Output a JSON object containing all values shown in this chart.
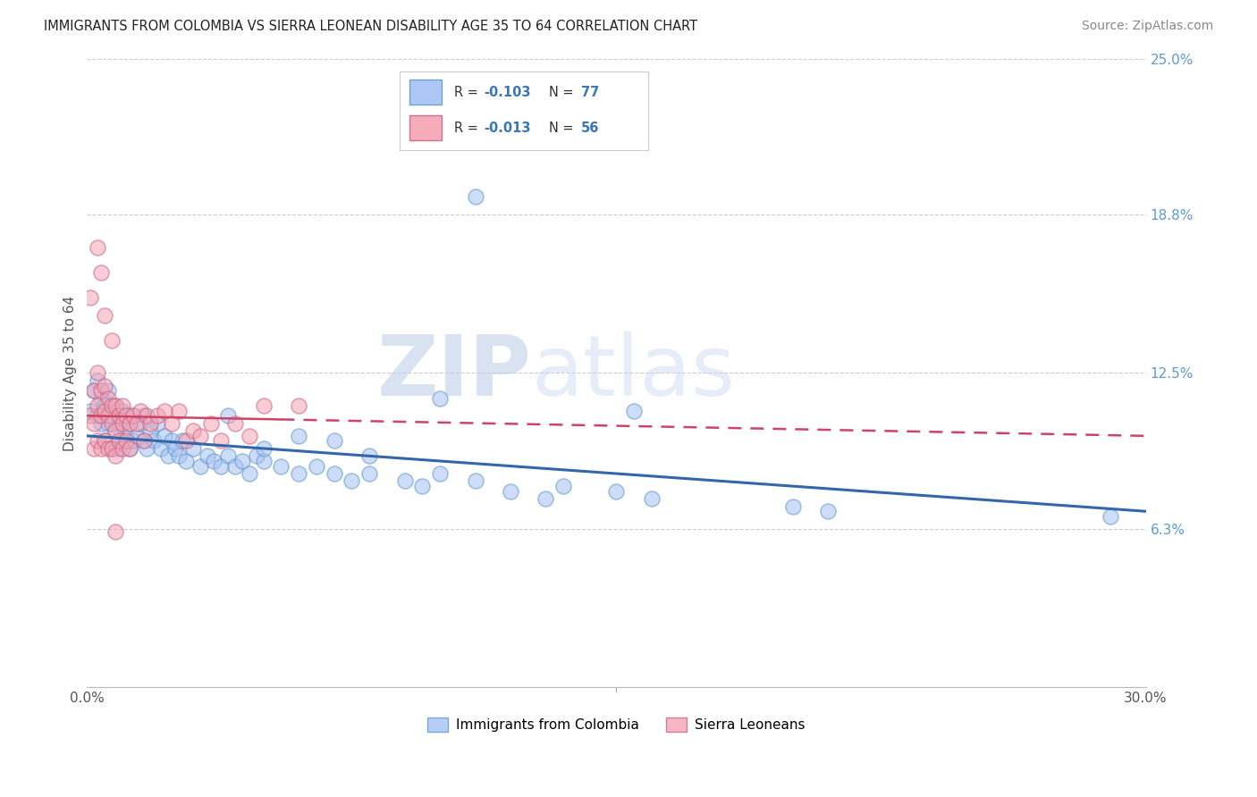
{
  "title": "IMMIGRANTS FROM COLOMBIA VS SIERRA LEONEAN DISABILITY AGE 35 TO 64 CORRELATION CHART",
  "source": "Source: ZipAtlas.com",
  "ylabel": "Disability Age 35 to 64",
  "xlim": [
    0.0,
    0.3
  ],
  "ylim": [
    0.0,
    0.25
  ],
  "ytick_right_values": [
    0.0,
    0.063,
    0.125,
    0.188,
    0.25
  ],
  "ytick_right_labels": [
    "",
    "6.3%",
    "12.5%",
    "18.8%",
    "25.0%"
  ],
  "grid_color": "#cccccc",
  "background_color": "#ffffff",
  "blue_fill": "#a4c2f4",
  "blue_edge": "#6699cc",
  "pink_fill": "#f4a4b4",
  "pink_edge": "#cc6688",
  "blue_line_color": "#3366aa",
  "pink_line_color": "#cc4466",
  "legend_r_blue": "-0.103",
  "legend_n_blue": "77",
  "legend_r_pink": "-0.013",
  "legend_n_pink": "56",
  "legend_label_blue": "Immigrants from Colombia",
  "legend_label_pink": "Sierra Leoneans",
  "watermark_zip": "ZIP",
  "watermark_atlas": "atlas",
  "colombia_x": [
    0.001,
    0.002,
    0.003,
    0.003,
    0.004,
    0.004,
    0.005,
    0.005,
    0.006,
    0.006,
    0.007,
    0.007,
    0.008,
    0.008,
    0.009,
    0.009,
    0.01,
    0.01,
    0.011,
    0.011,
    0.012,
    0.012,
    0.013,
    0.013,
    0.014,
    0.015,
    0.016,
    0.016,
    0.017,
    0.018,
    0.019,
    0.02,
    0.021,
    0.022,
    0.023,
    0.024,
    0.025,
    0.026,
    0.027,
    0.028,
    0.03,
    0.032,
    0.034,
    0.036,
    0.038,
    0.04,
    0.042,
    0.044,
    0.046,
    0.048,
    0.05,
    0.055,
    0.06,
    0.065,
    0.07,
    0.075,
    0.08,
    0.09,
    0.095,
    0.1,
    0.11,
    0.12,
    0.13,
    0.135,
    0.15,
    0.16,
    0.2,
    0.21,
    0.155,
    0.1,
    0.04,
    0.05,
    0.06,
    0.07,
    0.08,
    0.29,
    0.11
  ],
  "colombia_y": [
    0.11,
    0.118,
    0.122,
    0.108,
    0.115,
    0.105,
    0.112,
    0.098,
    0.118,
    0.105,
    0.108,
    0.095,
    0.112,
    0.102,
    0.105,
    0.095,
    0.11,
    0.098,
    0.108,
    0.1,
    0.105,
    0.095,
    0.108,
    0.098,
    0.1,
    0.105,
    0.098,
    0.108,
    0.095,
    0.102,
    0.098,
    0.105,
    0.095,
    0.1,
    0.092,
    0.098,
    0.095,
    0.092,
    0.098,
    0.09,
    0.095,
    0.088,
    0.092,
    0.09,
    0.088,
    0.092,
    0.088,
    0.09,
    0.085,
    0.092,
    0.09,
    0.088,
    0.085,
    0.088,
    0.085,
    0.082,
    0.085,
    0.082,
    0.08,
    0.085,
    0.082,
    0.078,
    0.075,
    0.08,
    0.078,
    0.075,
    0.072,
    0.07,
    0.11,
    0.115,
    0.108,
    0.095,
    0.1,
    0.098,
    0.092,
    0.068,
    0.195
  ],
  "sierra_x": [
    0.001,
    0.001,
    0.002,
    0.002,
    0.002,
    0.003,
    0.003,
    0.003,
    0.004,
    0.004,
    0.004,
    0.005,
    0.005,
    0.005,
    0.006,
    0.006,
    0.006,
    0.007,
    0.007,
    0.007,
    0.008,
    0.008,
    0.008,
    0.009,
    0.009,
    0.01,
    0.01,
    0.01,
    0.011,
    0.011,
    0.012,
    0.012,
    0.013,
    0.014,
    0.015,
    0.016,
    0.017,
    0.018,
    0.02,
    0.022,
    0.024,
    0.026,
    0.028,
    0.03,
    0.032,
    0.035,
    0.038,
    0.042,
    0.046,
    0.05,
    0.003,
    0.004,
    0.005,
    0.007,
    0.008,
    0.06
  ],
  "sierra_y": [
    0.155,
    0.108,
    0.118,
    0.105,
    0.095,
    0.125,
    0.112,
    0.098,
    0.118,
    0.108,
    0.095,
    0.12,
    0.11,
    0.098,
    0.115,
    0.108,
    0.095,
    0.112,
    0.105,
    0.095,
    0.112,
    0.102,
    0.092,
    0.108,
    0.098,
    0.112,
    0.105,
    0.095,
    0.108,
    0.098,
    0.105,
    0.095,
    0.108,
    0.105,
    0.11,
    0.098,
    0.108,
    0.105,
    0.108,
    0.11,
    0.105,
    0.11,
    0.098,
    0.102,
    0.1,
    0.105,
    0.098,
    0.105,
    0.1,
    0.112,
    0.175,
    0.165,
    0.148,
    0.138,
    0.062,
    0.112
  ]
}
